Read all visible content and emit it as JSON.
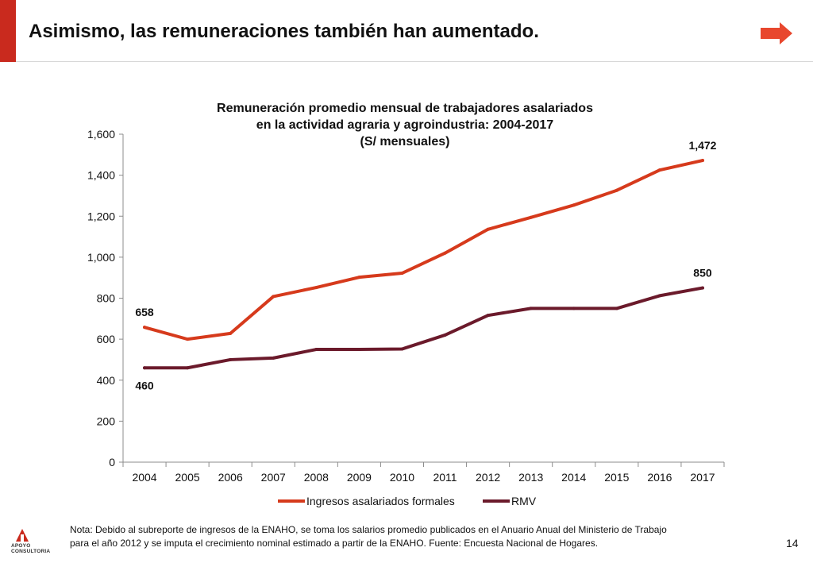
{
  "header": {
    "title": "Asimismo, las remuneraciones también han aumentado.",
    "next_icon": "right-arrow-icon"
  },
  "chart_title": {
    "line1": "Remuneración promedio mensual de trabajadores asalariados",
    "line2": "en la actividad agraria y agroindustria: 2004-2017",
    "line3": "(S/ mensuales)"
  },
  "chart_data": {
    "type": "line",
    "title": "Remuneración promedio mensual de trabajadores asalariados en la actividad agraria y agroindustria: 2004-2017 (S/ mensuales)",
    "x": [
      "2004",
      "2005",
      "2006",
      "2007",
      "2008",
      "2009",
      "2010",
      "2011",
      "2012",
      "2013",
      "2014",
      "2015",
      "2016",
      "2017"
    ],
    "series": [
      {
        "name": "Ingresos asalariados formales",
        "color": "#d63a1c",
        "values": [
          658,
          600,
          628,
          808,
          852,
          902,
          922,
          1020,
          1136,
          1194,
          1254,
          1326,
          1425,
          1472
        ]
      },
      {
        "name": "RMV",
        "color": "#6b1a2b",
        "values": [
          460,
          460,
          500,
          508,
          550,
          550,
          552,
          620,
          716,
          750,
          750,
          750,
          812,
          850
        ]
      }
    ],
    "ylim": [
      0,
      1600
    ],
    "yticks": [
      0,
      200,
      400,
      600,
      800,
      1000,
      1200,
      1400,
      1600
    ],
    "ytick_labels": [
      "0",
      "200",
      "400",
      "600",
      "800",
      "1,000",
      "1,200",
      "1,400",
      "1,600"
    ],
    "data_labels": [
      {
        "series": 0,
        "index": 0,
        "text": "658"
      },
      {
        "series": 0,
        "index": 13,
        "text": "1,472"
      },
      {
        "series": 1,
        "index": 0,
        "text": "460"
      },
      {
        "series": 1,
        "index": 13,
        "text": "850"
      }
    ],
    "legend_position": "bottom",
    "grid": false
  },
  "footer": {
    "note_line1": "Nota: Debido al subreporte de ingresos de la ENAHO, se toma los salarios promedio publicados en el Anuario Anual del Ministerio de Trabajo",
    "note_line2": "para el año 2012 y se imputa el crecimiento nominal estimado a partir de la ENAHO. Fuente: Encuesta Nacional de Hogares.",
    "page_number": "14",
    "logo_text_1": "APOYO",
    "logo_text_2": "CONSULTORIA"
  }
}
